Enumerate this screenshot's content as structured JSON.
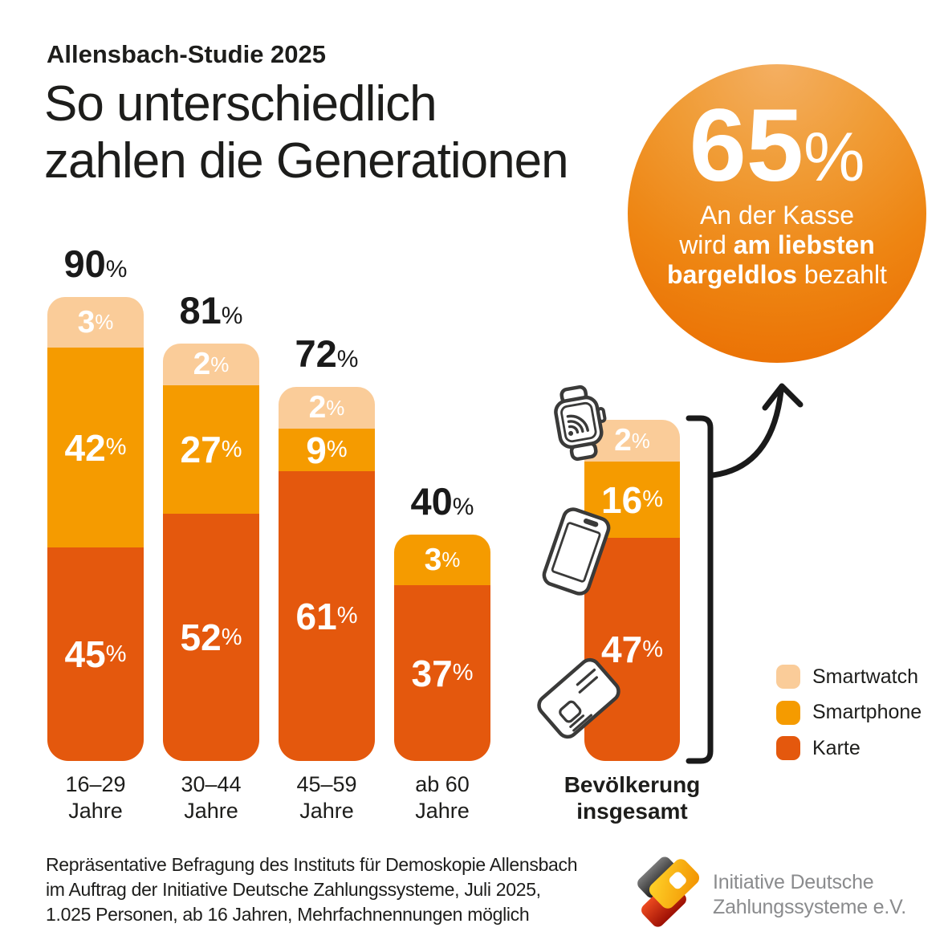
{
  "kicker": "Allensbach-Studie 2025",
  "title_line1": "So unterschiedlich",
  "title_line2": "zahlen die Generationen",
  "badge": {
    "value": "65",
    "unit": "%",
    "line1": "An der Kasse",
    "line2_pre": "wird ",
    "line2_bold": "am liebsten",
    "line3_bold": "bargeldlos",
    "line3_post": " bezahlt"
  },
  "colors": {
    "smartwatch": "#FACC99",
    "smartphone": "#F59B00",
    "karte": "#E4580D"
  },
  "percent_sign": "%",
  "legend": [
    {
      "key": "smartwatch",
      "label": "Smartwatch"
    },
    {
      "key": "smartphone",
      "label": "Smartphone"
    },
    {
      "key": "karte",
      "label": "Karte"
    }
  ],
  "bars": [
    {
      "label_line1": "16–29",
      "label_line2": "Jahre",
      "total": 90,
      "bold_label": false,
      "show_total": true,
      "segments": [
        {
          "key": "smartwatch",
          "pct": 3
        },
        {
          "key": "smartphone",
          "pct": 42
        },
        {
          "key": "karte",
          "pct": 45
        }
      ]
    },
    {
      "label_line1": "30–44",
      "label_line2": "Jahre",
      "total": 81,
      "bold_label": false,
      "show_total": true,
      "segments": [
        {
          "key": "smartwatch",
          "pct": 2
        },
        {
          "key": "smartphone",
          "pct": 27
        },
        {
          "key": "karte",
          "pct": 52
        }
      ]
    },
    {
      "label_line1": "45–59",
      "label_line2": "Jahre",
      "total": 72,
      "bold_label": false,
      "show_total": true,
      "segments": [
        {
          "key": "smartwatch",
          "pct": 2
        },
        {
          "key": "smartphone",
          "pct": 9
        },
        {
          "key": "karte",
          "pct": 61
        }
      ]
    },
    {
      "label_line1": "ab 60",
      "label_line2": "Jahre",
      "total": 40,
      "bold_label": false,
      "show_total": true,
      "segments": [
        {
          "key": "smartphone",
          "pct": 3
        },
        {
          "key": "karte",
          "pct": 37
        }
      ]
    },
    {
      "label_line1": "Bevölkerung",
      "label_line2": "insgesamt",
      "total": 65,
      "bold_label": true,
      "show_total": false,
      "segments": [
        {
          "key": "smartwatch",
          "pct": 2
        },
        {
          "key": "smartphone",
          "pct": 16
        },
        {
          "key": "karte",
          "pct": 47
        }
      ]
    }
  ],
  "source_lines": [
    "Repräsentative Befragung des Instituts für Demoskopie Allensbach",
    "im Auftrag der Initiative Deutsche Zahlungssysteme, Juli 2025,",
    "1.025 Personen, ab 16 Jahren, Mehrfachnennungen möglich"
  ],
  "logo": {
    "line1": "Initiative Deutsche",
    "line2": "Zahlungssysteme e.V."
  },
  "chart_data": {
    "type": "bar",
    "subtype": "stacked",
    "title": "Allensbach-Studie 2025 – So unterschiedlich zahlen die Generationen",
    "categories": [
      "16–29 Jahre",
      "30–44 Jahre",
      "45–59 Jahre",
      "ab 60 Jahre",
      "Bevölkerung insgesamt"
    ],
    "series": [
      {
        "name": "Smartwatch",
        "values": [
          3,
          2,
          2,
          null,
          2
        ]
      },
      {
        "name": "Smartphone",
        "values": [
          42,
          27,
          9,
          3,
          16
        ]
      },
      {
        "name": "Karte",
        "values": [
          45,
          52,
          61,
          37,
          47
        ]
      }
    ],
    "totals": [
      90,
      81,
      72,
      40,
      65
    ],
    "unit": "%",
    "highlight": "65% An der Kasse wird am liebsten bargeldlos bezahlt",
    "legend_position": "right",
    "grid": false
  }
}
